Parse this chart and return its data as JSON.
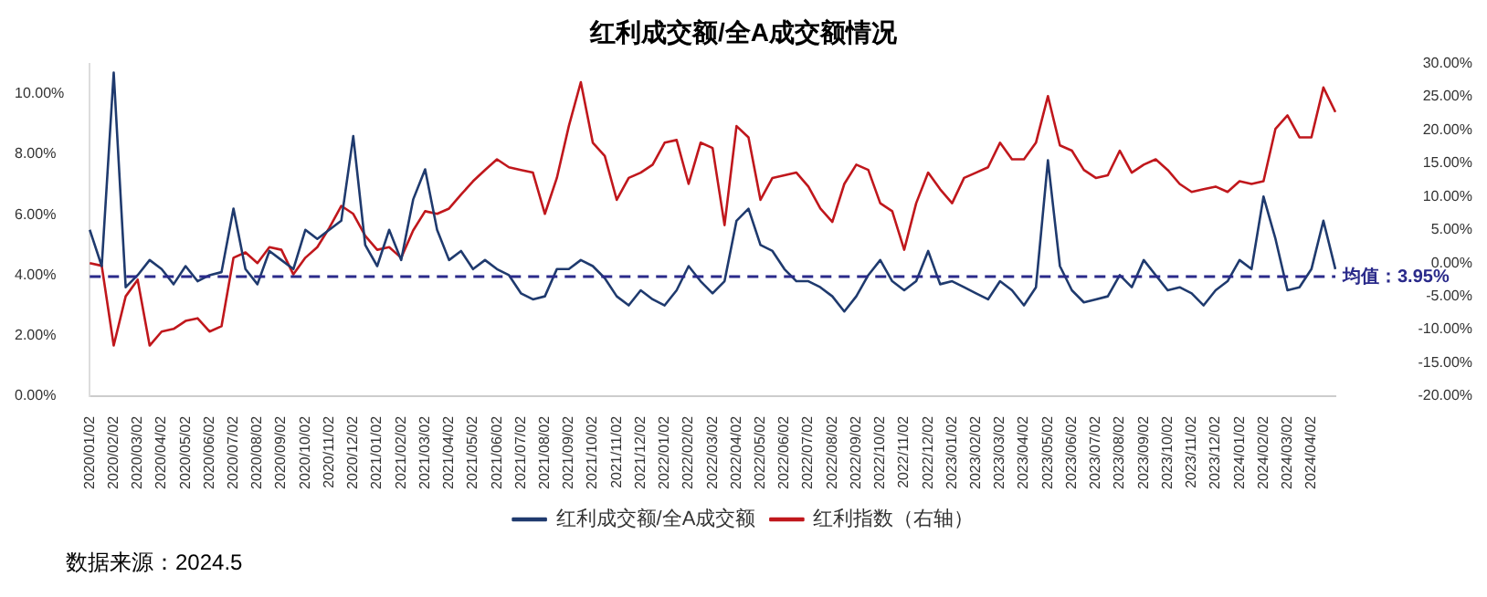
{
  "chart_data": {
    "type": "line",
    "title": "红利成交额/全A成交额情况",
    "categories": [
      "2020/01/02",
      null,
      "2020/02/02",
      null,
      "2020/03/02",
      null,
      "2020/04/02",
      null,
      "2020/05/02",
      null,
      "2020/06/02",
      null,
      "2020/07/02",
      null,
      "2020/08/02",
      null,
      "2020/09/02",
      null,
      "2020/10/02",
      null,
      "2020/11/02",
      null,
      "2020/12/02",
      null,
      "2021/01/02",
      null,
      "2021/02/02",
      null,
      "2021/03/02",
      null,
      "2021/04/02",
      null,
      "2021/05/02",
      null,
      "2021/06/02",
      null,
      "2021/07/02",
      null,
      "2021/08/02",
      null,
      "2021/09/02",
      null,
      "2021/10/02",
      null,
      "2021/11/02",
      null,
      "2021/12/02",
      null,
      "2022/01/02",
      null,
      "2022/02/02",
      null,
      "2022/03/02",
      null,
      "2022/04/02",
      null,
      "2022/05/02",
      null,
      "2022/06/02",
      null,
      "2022/07/02",
      null,
      "2022/08/02",
      null,
      "2022/09/02",
      null,
      "2022/10/02",
      null,
      "2022/11/02",
      null,
      "2022/12/02",
      null,
      "2023/01/02",
      null,
      "2023/02/02",
      null,
      "2023/03/02",
      null,
      "2023/04/02",
      null,
      "2023/05/02",
      null,
      "2023/06/02",
      null,
      "2023/07/02",
      null,
      "2023/08/02",
      null,
      "2023/09/02",
      null,
      "2023/10/02",
      null,
      "2023/11/02",
      null,
      "2023/12/02",
      null,
      "2024/01/02",
      null,
      "2024/02/02",
      null,
      "2024/03/02",
      null,
      "2024/04/02",
      null,
      null
    ],
    "series": [
      {
        "name": "红利成交额/全A成交额",
        "color": "#1f3a6e",
        "values": [
          5.5,
          4.3,
          10.7,
          3.6,
          4.0,
          4.5,
          4.2,
          3.7,
          4.3,
          3.8,
          4.0,
          4.1,
          6.2,
          4.2,
          3.7,
          4.8,
          4.5,
          4.2,
          5.5,
          5.2,
          5.5,
          5.8,
          8.6,
          5.0,
          4.3,
          5.5,
          4.5,
          6.5,
          7.5,
          5.5,
          4.5,
          4.8,
          4.2,
          4.5,
          4.2,
          4.0,
          3.4,
          3.2,
          3.3,
          4.2,
          4.2,
          4.5,
          4.3,
          3.9,
          3.3,
          3.0,
          3.5,
          3.2,
          3.0,
          3.5,
          4.3,
          3.8,
          3.4,
          3.8,
          5.8,
          6.2,
          5.0,
          4.8,
          4.2,
          3.8,
          3.8,
          3.6,
          3.3,
          2.8,
          3.3,
          4.0,
          4.5,
          3.8,
          3.5,
          3.8,
          4.8,
          3.7,
          3.8,
          3.6,
          3.4,
          3.2,
          3.8,
          3.5,
          3.0,
          3.6,
          7.8,
          4.3,
          3.5,
          3.1,
          3.2,
          3.3,
          4.0,
          3.6,
          4.5,
          4.0,
          3.5,
          3.6,
          3.4,
          3.0,
          3.5,
          3.8,
          4.5,
          4.2,
          6.6,
          5.2,
          3.5,
          3.6,
          4.2,
          5.8,
          4.2
        ]
      },
      {
        "name": "红利指数（右轴）",
        "color": "#c0171c",
        "axis": "y2",
        "values": [
          0.0,
          -0.4,
          -12.4,
          -5.0,
          -2.5,
          -12.4,
          -10.3,
          -9.9,
          -8.7,
          -8.3,
          -10.3,
          -9.5,
          0.8,
          1.6,
          0.0,
          2.4,
          2.0,
          -1.7,
          0.8,
          2.4,
          5.3,
          8.6,
          7.4,
          4.1,
          2.0,
          2.4,
          0.8,
          4.9,
          7.8,
          7.4,
          8.2,
          10.3,
          12.3,
          14.0,
          15.6,
          14.4,
          14.0,
          13.6,
          7.4,
          12.8,
          20.6,
          27.2,
          18.1,
          16.1,
          9.5,
          12.8,
          13.6,
          14.8,
          18.1,
          18.5,
          11.9,
          18.1,
          17.3,
          5.7,
          20.6,
          18.9,
          9.5,
          12.8,
          13.2,
          13.6,
          11.5,
          8.2,
          6.2,
          11.9,
          14.8,
          14.0,
          9.0,
          7.8,
          2.0,
          9.0,
          13.6,
          11.1,
          9.0,
          12.8,
          13.6,
          14.4,
          18.1,
          15.6,
          15.6,
          18.1,
          25.1,
          17.7,
          16.9,
          14.0,
          12.8,
          13.2,
          16.9,
          13.6,
          14.8,
          15.6,
          14.0,
          11.9,
          10.7,
          11.1,
          11.5,
          10.7,
          12.3,
          11.9,
          12.3,
          20.2,
          22.2,
          18.9,
          18.9,
          26.4,
          22.7
        ]
      }
    ],
    "ylim": [
      0,
      11
    ],
    "yticks": [
      {
        "value": 0,
        "label": "0.00%"
      },
      {
        "value": 2,
        "label": "2.00%"
      },
      {
        "value": 4,
        "label": "4.00%"
      },
      {
        "value": 6,
        "label": "6.00%"
      },
      {
        "value": 8,
        "label": "8.00%"
      },
      {
        "value": 10,
        "label": "10.00%"
      }
    ],
    "y2lim": [
      -20,
      30
    ],
    "y2ticks": [
      {
        "value": -20,
        "label": "-20.00%"
      },
      {
        "value": -15,
        "label": "-15.00%"
      },
      {
        "value": -10,
        "label": "-10.00%"
      },
      {
        "value": -5,
        "label": "-5.00%"
      },
      {
        "value": 0,
        "label": "0.00%"
      },
      {
        "value": 5,
        "label": "5.00%"
      },
      {
        "value": 10,
        "label": "10.00%"
      },
      {
        "value": 15,
        "label": "15.00%"
      },
      {
        "value": 20,
        "label": "20.00%"
      },
      {
        "value": 25,
        "label": "25.00%"
      },
      {
        "value": 30,
        "label": "30.00%"
      }
    ],
    "ref_lines": [
      {
        "axis": "y",
        "value": 3.95,
        "label": "均值：3.95%",
        "color": "#2a2a8a",
        "line_style": "dashed"
      }
    ],
    "annotations": [
      "数据来源：2024.5"
    ],
    "legend": "bottom",
    "grid": false,
    "marker": "none",
    "line_style": "solid"
  }
}
